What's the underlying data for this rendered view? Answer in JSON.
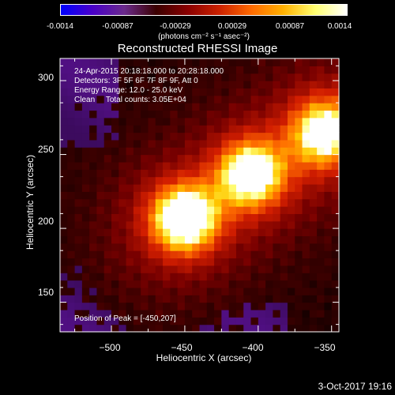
{
  "colorbar": {
    "colors": [
      "#0000ff",
      "#4a00c8",
      "#6b2a8c",
      "#3a0000",
      "#8a0000",
      "#cc2200",
      "#ff6a00",
      "#ffb000",
      "#ffff70",
      "#ffffff"
    ],
    "ticks": [
      "-0.0014",
      "-0.00087",
      "-0.00029",
      "0.00029",
      "0.00087",
      "0.0014"
    ],
    "units": "(photons cm⁻² s⁻¹ asec⁻²)"
  },
  "chart_data": {
    "type": "heatmap",
    "title": "Reconstructed RHESSI Image",
    "xlabel": "Heliocentric X (arcsec)",
    "ylabel": "Heliocentric Y (arcsec)",
    "xlim": [
      -535,
      -345
    ],
    "ylim": [
      130,
      315
    ],
    "xticks": [
      -500,
      -450,
      -400,
      -350
    ],
    "yticks": [
      150,
      200,
      250,
      300
    ],
    "xtick_labels": [
      "−500",
      "−450",
      "−400",
      "−350"
    ],
    "ytick_labels": [
      "150",
      "200",
      "250",
      "300"
    ],
    "vmin": -0.0014,
    "vmax": 0.0014,
    "peak": [
      -450,
      207
    ],
    "sources": [
      {
        "x": -450,
        "y": 207,
        "amp": 1.0
      },
      {
        "x": -405,
        "y": 237,
        "amp": 0.9
      },
      {
        "x": -355,
        "y": 265,
        "amp": 0.82
      }
    ]
  },
  "info": {
    "line1": "24-Apr-2015 20:18:18.000 to 20:28:18.000",
    "line2": "Detectors: 3F 5F 6F 7F 8F 9F, Att 0",
    "line3": "Energy Range: 12.0 - 25.0 keV",
    "line4": "Clean     Total counts: 3.05E+04"
  },
  "peak_label": "Position of Peak = [-450,207]",
  "footer": "3-Oct-2017 19:16"
}
